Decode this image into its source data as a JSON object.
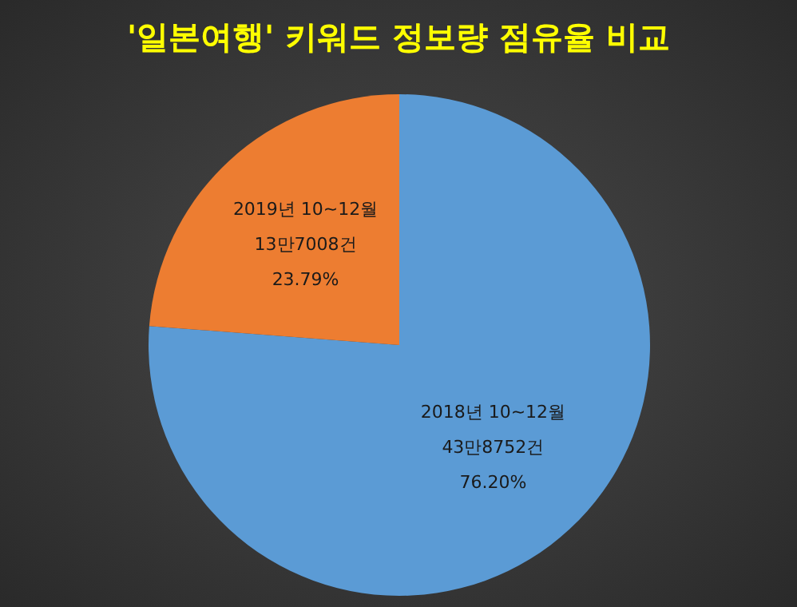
{
  "chart_data": {
    "type": "pie",
    "title": "'일본여행' 키워드 정보량 점유율 비교",
    "categories": [
      "2018년 10~12월",
      "2019년 10~12월"
    ],
    "values": [
      76.2,
      23.79
    ],
    "colors": [
      "#5b9bd5",
      "#ed7d31"
    ],
    "value_labels": [
      "76.20%",
      "23.79%"
    ],
    "annotations": [
      "43만8752건",
      "13만7008건"
    ]
  }
}
